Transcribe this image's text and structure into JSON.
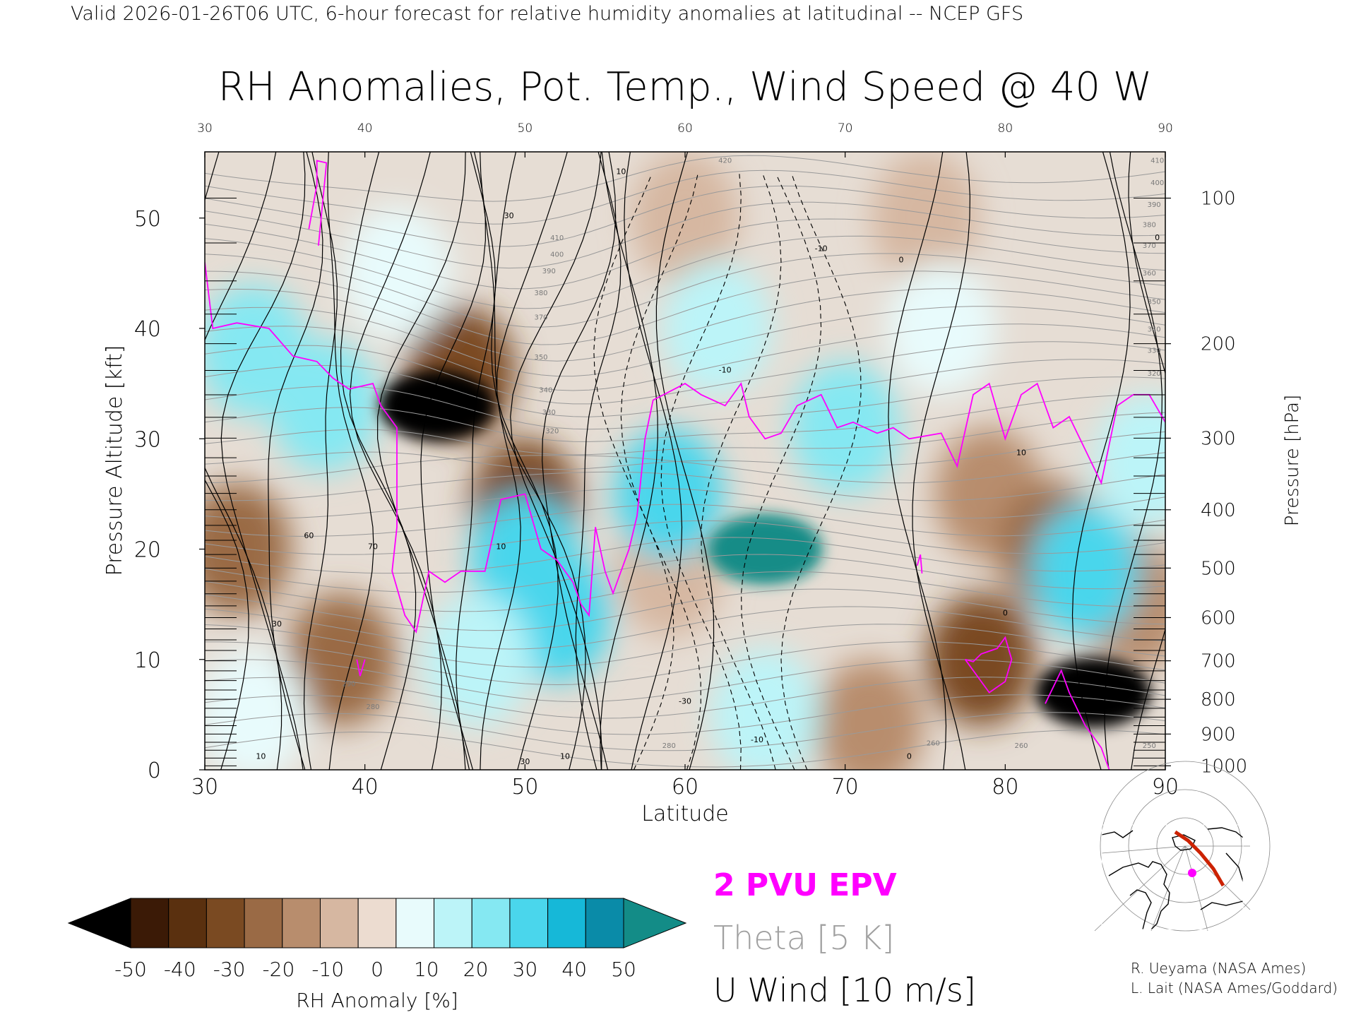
{
  "header": "Valid 2026-01-26T06 UTC, 6-hour forecast for relative humidity anomalies at latitudinal -- NCEP GFS",
  "chart_data": {
    "type": "heatmap",
    "title": "RH Anomalies, Pot. Temp., Wind Speed @ 40 W",
    "xlabel": "Latitude",
    "ylabel": "Pressure Altitude [kft]",
    "y2label": "Pressure [hPa]",
    "xlim": [
      30,
      90
    ],
    "ylim": [
      0,
      56
    ],
    "x_ticks": [
      30,
      40,
      50,
      60,
      70,
      80,
      90
    ],
    "y_ticks": [
      0,
      10,
      20,
      30,
      40,
      50
    ],
    "pressure_ticks": [
      {
        "hPa": 100,
        "label": "100"
      },
      {
        "hPa": 200,
        "label": "200"
      },
      {
        "hPa": 300,
        "label": "300"
      },
      {
        "hPa": 400,
        "label": "400"
      },
      {
        "hPa": 500,
        "label": "500"
      },
      {
        "hPa": 600,
        "label": "600"
      },
      {
        "hPa": 700,
        "label": "700"
      },
      {
        "hPa": 800,
        "label": "800"
      },
      {
        "hPa": 900,
        "label": "900"
      },
      {
        "hPa": 1000,
        "label": "1000"
      }
    ],
    "rh_anomaly_features": [
      {
        "lat": 44.5,
        "kft": 33,
        "value": -55
      },
      {
        "lat": 85.5,
        "kft": 7,
        "value": -55
      },
      {
        "lat": 46,
        "kft": 36,
        "value": -40
      },
      {
        "lat": 50,
        "kft": 24,
        "value": -35
      },
      {
        "lat": 32,
        "kft": 20,
        "value": -25
      },
      {
        "lat": 38.5,
        "kft": 10,
        "value": -30
      },
      {
        "lat": 78.5,
        "kft": 10,
        "value": -35
      },
      {
        "lat": 71.5,
        "kft": 4,
        "value": -20
      },
      {
        "lat": 79,
        "kft": 25,
        "value": -15
      },
      {
        "lat": 83,
        "kft": 20,
        "value": -25
      },
      {
        "lat": 88,
        "kft": 15,
        "value": -20
      },
      {
        "lat": 59,
        "kft": 18,
        "value": -10
      },
      {
        "lat": 60,
        "kft": 50,
        "value": -5
      },
      {
        "lat": 75,
        "kft": 50,
        "value": -5
      },
      {
        "lat": 33,
        "kft": 38,
        "value": 35
      },
      {
        "lat": 37.5,
        "kft": 33,
        "value": 35
      },
      {
        "lat": 50,
        "kft": 19,
        "value": 45
      },
      {
        "lat": 52,
        "kft": 14,
        "value": 40
      },
      {
        "lat": 59,
        "kft": 25,
        "value": 45
      },
      {
        "lat": 65,
        "kft": 20,
        "value": 55
      },
      {
        "lat": 70,
        "kft": 31,
        "value": 30
      },
      {
        "lat": 47,
        "kft": 10,
        "value": 20
      },
      {
        "lat": 65,
        "kft": 5,
        "value": 25
      },
      {
        "lat": 85,
        "kft": 18,
        "value": 40
      },
      {
        "lat": 89,
        "kft": 28,
        "value": 25
      },
      {
        "lat": 33,
        "kft": 5,
        "value": 15
      },
      {
        "lat": 76,
        "kft": 40,
        "value": 15
      },
      {
        "lat": 62,
        "kft": 40,
        "value": 20
      },
      {
        "lat": 42,
        "kft": 45,
        "value": 15
      }
    ],
    "theta_labels": [
      {
        "lat": 62.5,
        "kft": 55,
        "text": "420"
      },
      {
        "lat": 52,
        "kft": 48,
        "text": "410"
      },
      {
        "lat": 52,
        "kft": 46.5,
        "text": "400"
      },
      {
        "lat": 51.5,
        "kft": 45,
        "text": "390"
      },
      {
        "lat": 51,
        "kft": 43,
        "text": "380"
      },
      {
        "lat": 51,
        "kft": 40.8,
        "text": "370"
      },
      {
        "lat": 51,
        "kft": 37.2,
        "text": "350"
      },
      {
        "lat": 51.3,
        "kft": 34.2,
        "text": "340"
      },
      {
        "lat": 51.5,
        "kft": 32.2,
        "text": "330"
      },
      {
        "lat": 51.7,
        "kft": 30.5,
        "text": "320"
      },
      {
        "lat": 89.5,
        "kft": 55,
        "text": "410"
      },
      {
        "lat": 89.5,
        "kft": 53,
        "text": "400"
      },
      {
        "lat": 89.3,
        "kft": 51,
        "text": "390"
      },
      {
        "lat": 89,
        "kft": 49.2,
        "text": "380"
      },
      {
        "lat": 89,
        "kft": 47.3,
        "text": "370"
      },
      {
        "lat": 89,
        "kft": 44.8,
        "text": "360"
      },
      {
        "lat": 89.3,
        "kft": 42.2,
        "text": "350"
      },
      {
        "lat": 89.3,
        "kft": 39.7,
        "text": "340"
      },
      {
        "lat": 89.3,
        "kft": 37.8,
        "text": "330"
      },
      {
        "lat": 89.3,
        "kft": 35.7,
        "text": "320"
      },
      {
        "lat": 39,
        "kft": 7.6,
        "text": "290"
      },
      {
        "lat": 40.5,
        "kft": 5.5,
        "text": "280"
      },
      {
        "lat": 59,
        "kft": 2,
        "text": "280"
      },
      {
        "lat": 75.5,
        "kft": 2.2,
        "text": "260"
      },
      {
        "lat": 81,
        "kft": 2,
        "text": "260"
      },
      {
        "lat": 89,
        "kft": 2,
        "text": "250"
      }
    ],
    "wind_labels": [
      {
        "lat": 49,
        "kft": 50,
        "text": "30"
      },
      {
        "lat": 56,
        "kft": 54,
        "text": "10"
      },
      {
        "lat": 36.5,
        "kft": 21,
        "text": "60"
      },
      {
        "lat": 40.5,
        "kft": 20,
        "text": "70"
      },
      {
        "lat": 34.5,
        "kft": 13,
        "text": "30"
      },
      {
        "lat": 33.5,
        "kft": 1,
        "text": "10"
      },
      {
        "lat": 48.5,
        "kft": 20,
        "text": "10"
      },
      {
        "lat": 50,
        "kft": 0.5,
        "text": "30"
      },
      {
        "lat": 52.5,
        "kft": 1,
        "text": "10"
      },
      {
        "lat": 62.5,
        "kft": 36,
        "text": "-10"
      },
      {
        "lat": 68.5,
        "kft": 47,
        "text": "-10"
      },
      {
        "lat": 60,
        "kft": 6,
        "text": "-30"
      },
      {
        "lat": 64.5,
        "kft": 2.5,
        "text": "-10"
      },
      {
        "lat": 73.5,
        "kft": 46,
        "text": "0"
      },
      {
        "lat": 81,
        "kft": 28.5,
        "text": "10"
      },
      {
        "lat": 80,
        "kft": 14,
        "text": "0"
      },
      {
        "lat": 74,
        "kft": 1,
        "text": "0"
      },
      {
        "lat": 89.5,
        "kft": 48,
        "text": "0"
      }
    ],
    "pv2_contours": [
      {
        "points": [
          [
            30,
            46
          ],
          [
            30.5,
            40
          ],
          [
            32,
            40.5
          ],
          [
            34,
            40
          ],
          [
            35.5,
            37.5
          ],
          [
            37,
            37
          ],
          [
            38,
            35.5
          ],
          [
            39,
            34.5
          ],
          [
            40.5,
            35
          ],
          [
            41,
            33
          ],
          [
            41.5,
            32
          ],
          [
            42,
            31
          ],
          [
            42,
            22
          ],
          [
            41.7,
            18
          ],
          [
            42.5,
            14
          ],
          [
            43.2,
            12.5
          ],
          [
            44,
            18
          ],
          [
            45,
            17
          ],
          [
            46,
            18
          ],
          [
            47.5,
            18
          ],
          [
            48.5,
            24.5
          ],
          [
            50,
            25
          ],
          [
            51,
            20
          ],
          [
            52,
            19
          ],
          [
            53,
            17
          ],
          [
            53.5,
            15
          ],
          [
            54,
            14
          ],
          [
            54.4,
            22
          ],
          [
            55,
            18
          ],
          [
            55.5,
            16
          ],
          [
            56.5,
            20
          ],
          [
            57,
            23
          ],
          [
            57.5,
            30
          ],
          [
            58,
            33.5
          ],
          [
            60,
            35
          ],
          [
            61,
            34
          ],
          [
            62.5,
            33
          ],
          [
            63.5,
            35
          ],
          [
            64,
            32
          ],
          [
            65,
            30
          ],
          [
            66,
            30.5
          ],
          [
            67,
            33
          ],
          [
            68.5,
            34
          ],
          [
            69.5,
            31
          ],
          [
            70.5,
            31.5
          ],
          [
            72,
            30.5
          ],
          [
            73,
            31
          ],
          [
            74,
            30
          ],
          [
            76,
            30.5
          ],
          [
            77,
            27.5
          ],
          [
            78,
            34
          ],
          [
            79,
            35
          ],
          [
            80,
            30
          ],
          [
            81,
            34
          ],
          [
            82,
            35
          ],
          [
            83,
            31
          ],
          [
            84,
            32
          ],
          [
            85,
            29
          ],
          [
            86,
            26
          ],
          [
            87,
            33
          ],
          [
            88,
            34
          ],
          [
            89,
            34
          ],
          [
            90,
            31.5
          ]
        ]
      },
      {
        "points": [
          [
            36.5,
            49
          ],
          [
            37,
            53
          ],
          [
            37,
            55.2
          ],
          [
            37.6,
            55
          ],
          [
            37.1,
            47.5
          ]
        ]
      },
      {
        "points": [
          [
            39.5,
            10
          ],
          [
            39.7,
            8.5
          ],
          [
            40,
            10
          ]
        ]
      },
      {
        "points": [
          [
            74.5,
            18.5
          ],
          [
            74.7,
            19.5
          ],
          [
            74.8,
            17.8
          ]
        ]
      },
      {
        "points": [
          [
            77.5,
            10
          ],
          [
            78,
            9.8
          ],
          [
            78.5,
            10.5
          ],
          [
            79.5,
            11
          ],
          [
            80,
            12
          ],
          [
            80.4,
            10
          ],
          [
            80,
            8
          ],
          [
            79,
            7
          ],
          [
            77.5,
            10
          ]
        ]
      },
      {
        "points": [
          [
            82.5,
            6
          ],
          [
            83.5,
            9
          ],
          [
            84,
            7
          ],
          [
            85,
            4
          ],
          [
            86,
            2
          ],
          [
            86.5,
            0
          ]
        ]
      }
    ],
    "colorbar": {
      "label": "RH Anomaly [%]",
      "ticks": [
        "-50",
        "-40",
        "-30",
        "-20",
        "-10",
        "0",
        "10",
        "20",
        "30",
        "40",
        "50"
      ],
      "stops": [
        "#000000",
        "#3b1a06",
        "#5a300f",
        "#7a4a22",
        "#9a6a45",
        "#b88d6d",
        "#d6b7a1",
        "#ecdcd0",
        "#e8fbfc",
        "#bcf4f8",
        "#85e8f2",
        "#4ad6ec",
        "#16b8d8",
        "#0a8ba8",
        "#138c87"
      ]
    }
  },
  "legend": {
    "pv": "2 PVU EPV",
    "theta": "Theta [5 K]",
    "wind": "U Wind [10 m/s]",
    "pv_color": "#ff00ff",
    "theta_color": "#a0a0a0",
    "wind_color": "#000000"
  },
  "inset": {
    "point_color": "#ff00ff",
    "track_color": "#cc2200"
  },
  "credits": {
    "line1": "R. Ueyama (NASA Ames)",
    "line2": "L. Lait (NASA Ames/Goddard)"
  }
}
